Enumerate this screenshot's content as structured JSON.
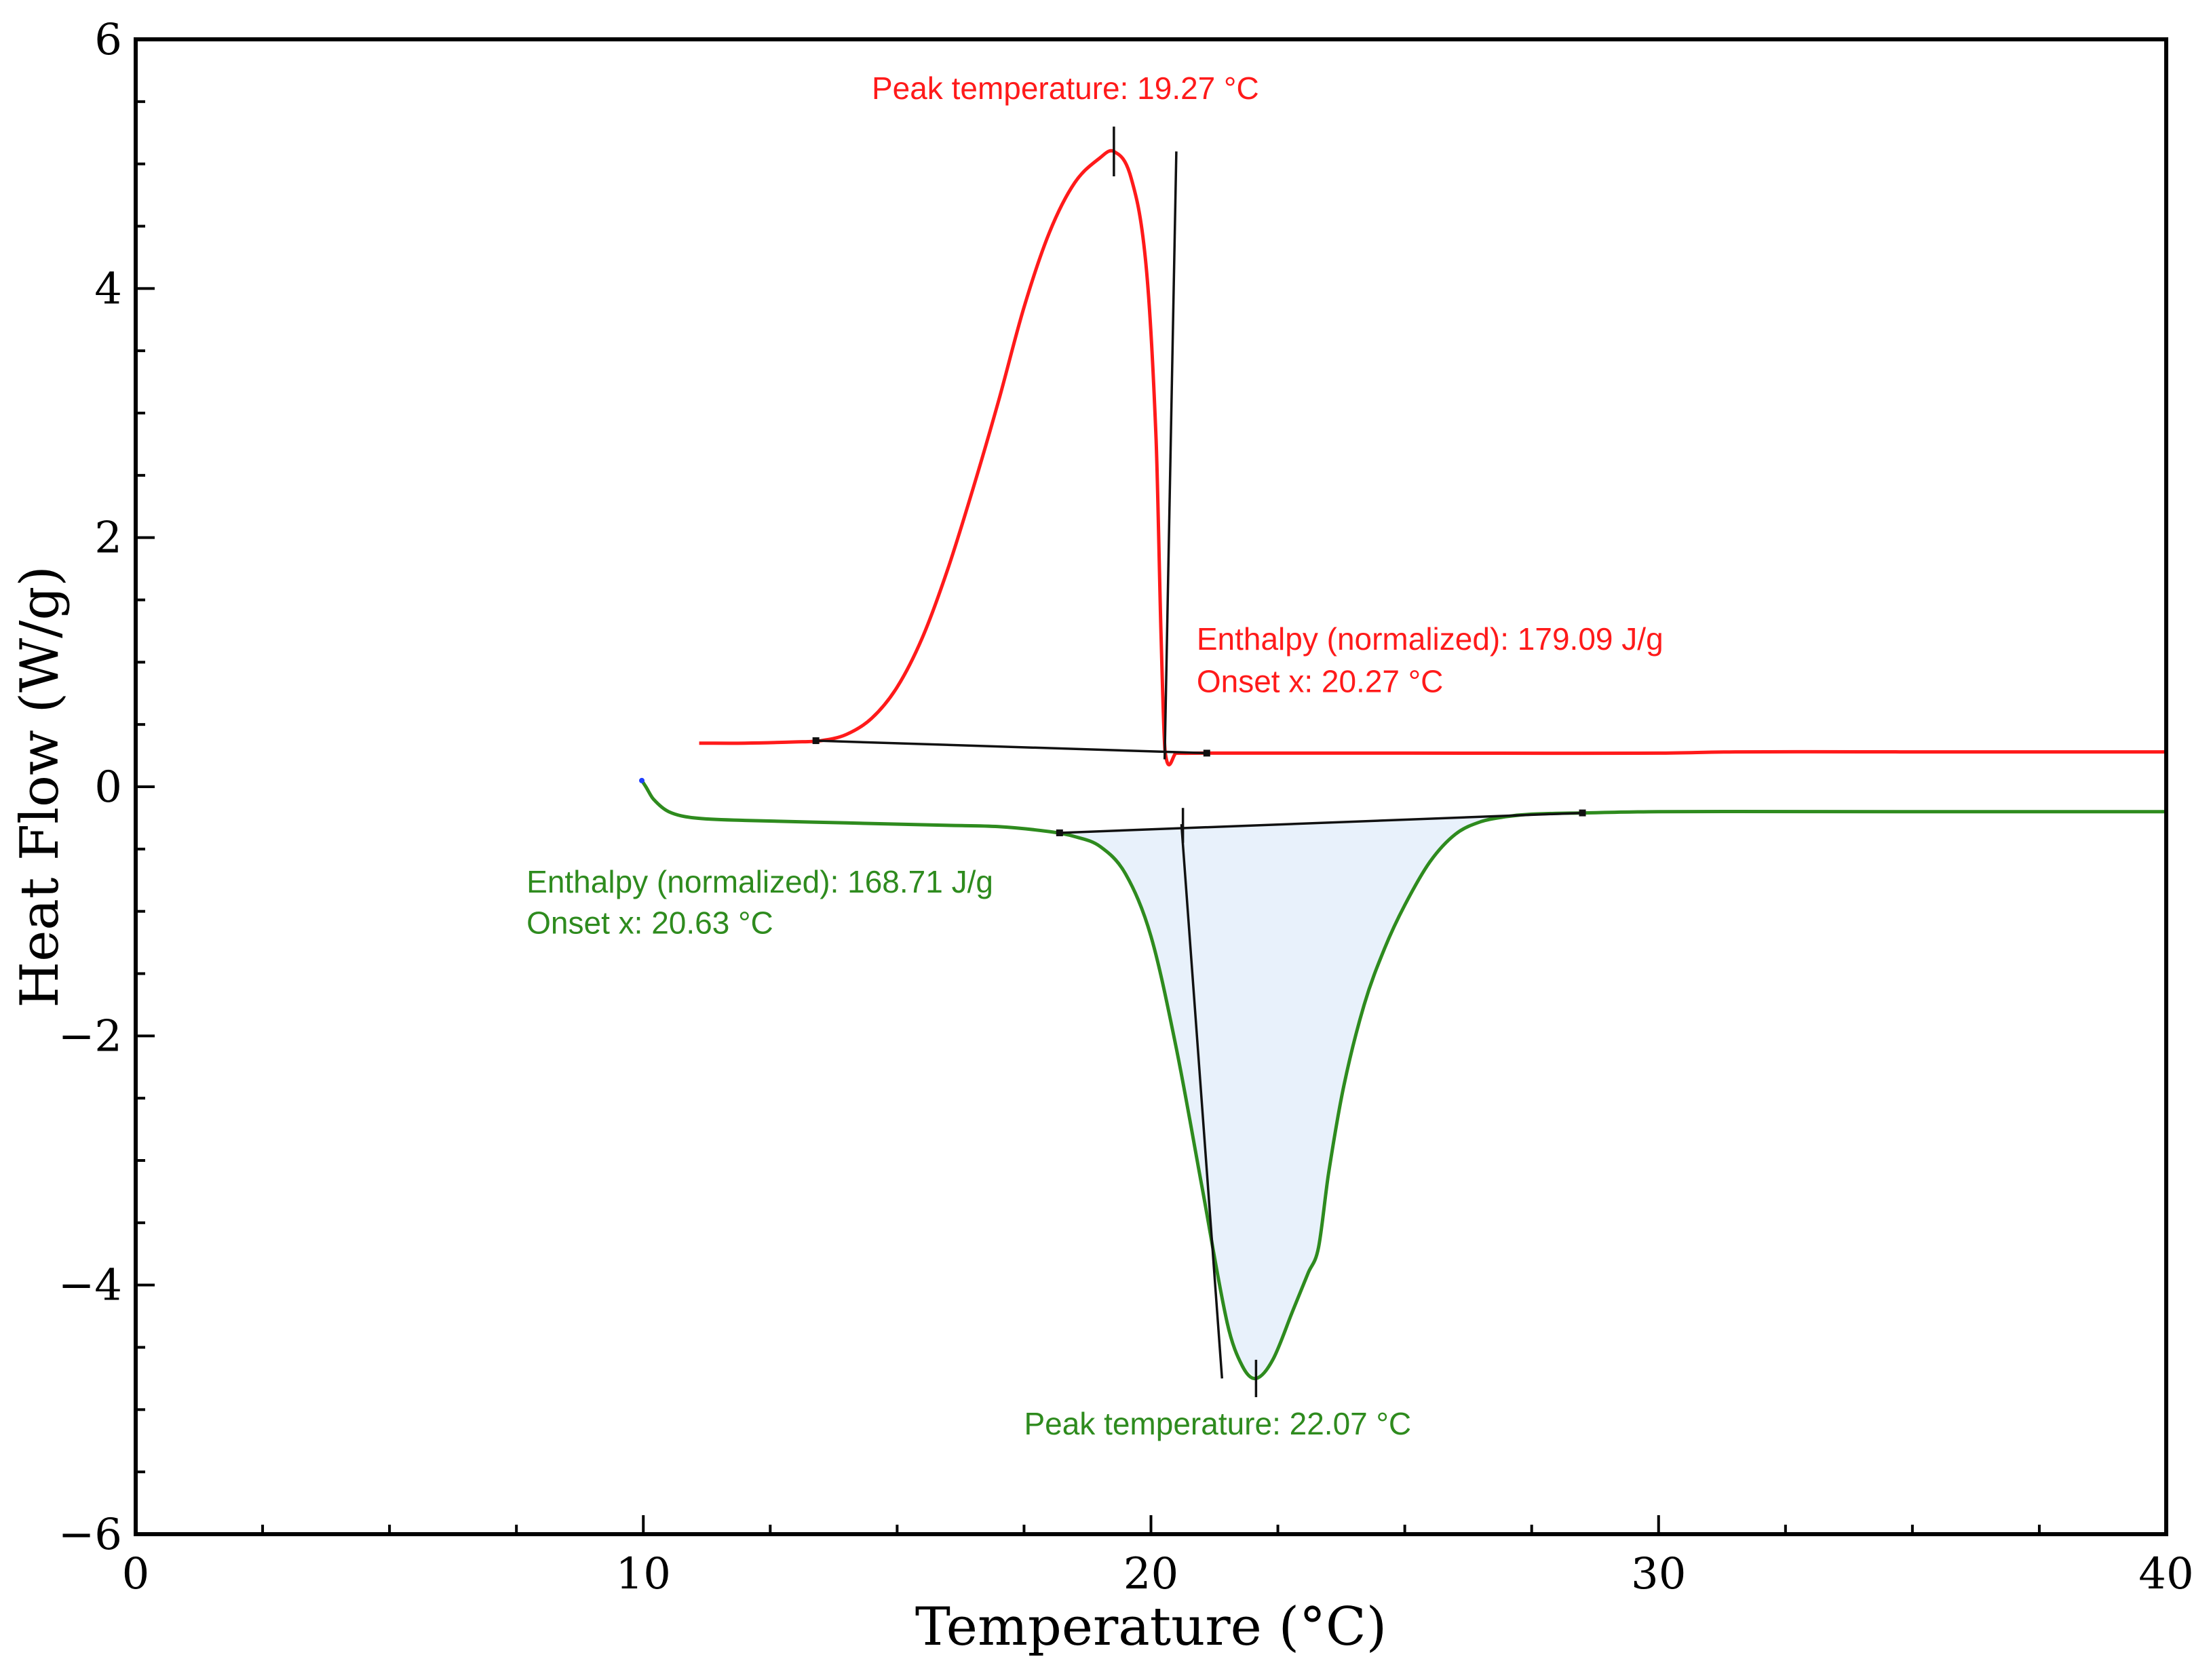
{
  "colors": {
    "heating": "#ff1a1a",
    "cooling": "#2e8b1e",
    "construction": "#111111",
    "fill": "#e8f1fb",
    "start_dot": "#1f3fff"
  },
  "chart_data": {
    "type": "line",
    "title": "",
    "xlabel": "Temperature (°C)",
    "ylabel": "Heat Flow (W/g)",
    "xlim": [
      0,
      40
    ],
    "ylim": [
      -6,
      6
    ],
    "xticks": [
      0,
      10,
      20,
      30,
      40
    ],
    "yticks": [
      6,
      4,
      2,
      0,
      -2,
      -4,
      -6
    ],
    "xtick_labels": [
      "0",
      "10",
      "20",
      "30",
      "40"
    ],
    "ytick_labels": [
      "6",
      "4",
      "2",
      "0",
      "−2",
      "−4",
      "−6"
    ],
    "grid": false,
    "series": [
      {
        "name": "red-trace",
        "x": [
          11.1,
          12,
          13,
          13.5,
          14,
          14.5,
          15,
          15.5,
          16,
          16.5,
          17,
          17.5,
          18,
          18.5,
          19,
          19.27,
          19.6,
          19.9,
          20.1,
          20.2,
          20.28,
          20.5,
          21,
          22,
          25,
          30,
          31.5,
          35,
          40
        ],
        "y": [
          0.35,
          0.35,
          0.36,
          0.37,
          0.42,
          0.55,
          0.8,
          1.2,
          1.75,
          2.4,
          3.1,
          3.85,
          4.45,
          4.85,
          5.05,
          5.1,
          4.9,
          4.2,
          2.8,
          1.2,
          0.28,
          0.27,
          0.27,
          0.27,
          0.27,
          0.27,
          0.28,
          0.28,
          0.28
        ]
      },
      {
        "name": "green-trace",
        "x": [
          9.97,
          10.05,
          10.2,
          10.5,
          11,
          12,
          14,
          16,
          17,
          18,
          18.5,
          19,
          19.5,
          20,
          20.5,
          21,
          21.5,
          21.8,
          22.07,
          22.4,
          22.8,
          23.1,
          23.3,
          23.5,
          23.8,
          24.2,
          24.6,
          25,
          25.5,
          26,
          26.5,
          27,
          27.5,
          28.5,
          30,
          35,
          40
        ],
        "y": [
          0.05,
          0.0,
          -0.1,
          -0.2,
          -0.25,
          -0.27,
          -0.29,
          -0.31,
          -0.32,
          -0.36,
          -0.4,
          -0.48,
          -0.7,
          -1.2,
          -2.1,
          -3.2,
          -4.3,
          -4.65,
          -4.75,
          -4.6,
          -4.2,
          -3.9,
          -3.7,
          -3.1,
          -2.4,
          -1.75,
          -1.3,
          -0.95,
          -0.6,
          -0.38,
          -0.28,
          -0.24,
          -0.22,
          -0.21,
          -0.2,
          -0.2,
          -0.2
        ]
      }
    ],
    "construction_lines": [
      {
        "name": "red-baseline",
        "x1": 13.4,
        "y1": 0.37,
        "x2": 21.1,
        "y2": 0.27
      },
      {
        "name": "red-tangent",
        "x1": 20.27,
        "y1": 0.22,
        "x2": 20.5,
        "y2": 5.1
      },
      {
        "name": "red-peak-marker",
        "x1": 19.27,
        "y1": 4.9,
        "x2": 19.27,
        "y2": 5.3
      },
      {
        "name": "green-baseline",
        "x1": 18.2,
        "y1": -0.37,
        "x2": 28.5,
        "y2": -0.21
      },
      {
        "name": "green-tangent",
        "x1": 20.6,
        "y1": -0.3,
        "x2": 21.4,
        "y2": -4.75
      },
      {
        "name": "green-onset-marker",
        "x1": 20.63,
        "y1": -0.17,
        "x2": 20.63,
        "y2": -0.45
      },
      {
        "name": "green-peak-marker",
        "x1": 22.07,
        "y1": -4.6,
        "x2": 22.07,
        "y2": -4.9
      }
    ],
    "annotations": [
      {
        "name": "red-peak-label",
        "text": "Peak temperature: 19.27 °C",
        "color_key": "heating",
        "x": 14.5,
        "y": 5.52
      },
      {
        "name": "red-enthalpy-label",
        "text": "Enthalpy (normalized): 179.09 J/g",
        "color_key": "heating",
        "x": 20.9,
        "y": 1.1
      },
      {
        "name": "red-onset-label",
        "text": "Onset x: 20.27 °C",
        "color_key": "heating",
        "x": 20.9,
        "y": 0.76
      },
      {
        "name": "green-enthalpy-label",
        "text": "Enthalpy (normalized): 168.71 J/g",
        "color_key": "cooling",
        "x": 7.7,
        "y": -0.85
      },
      {
        "name": "green-onset-label",
        "text": "Onset x: 20.63 °C",
        "color_key": "cooling",
        "x": 7.7,
        "y": -1.18
      },
      {
        "name": "green-peak-label",
        "text": "Peak temperature: 22.07 °C",
        "color_key": "cooling",
        "x": 17.5,
        "y": -5.2
      }
    ]
  }
}
